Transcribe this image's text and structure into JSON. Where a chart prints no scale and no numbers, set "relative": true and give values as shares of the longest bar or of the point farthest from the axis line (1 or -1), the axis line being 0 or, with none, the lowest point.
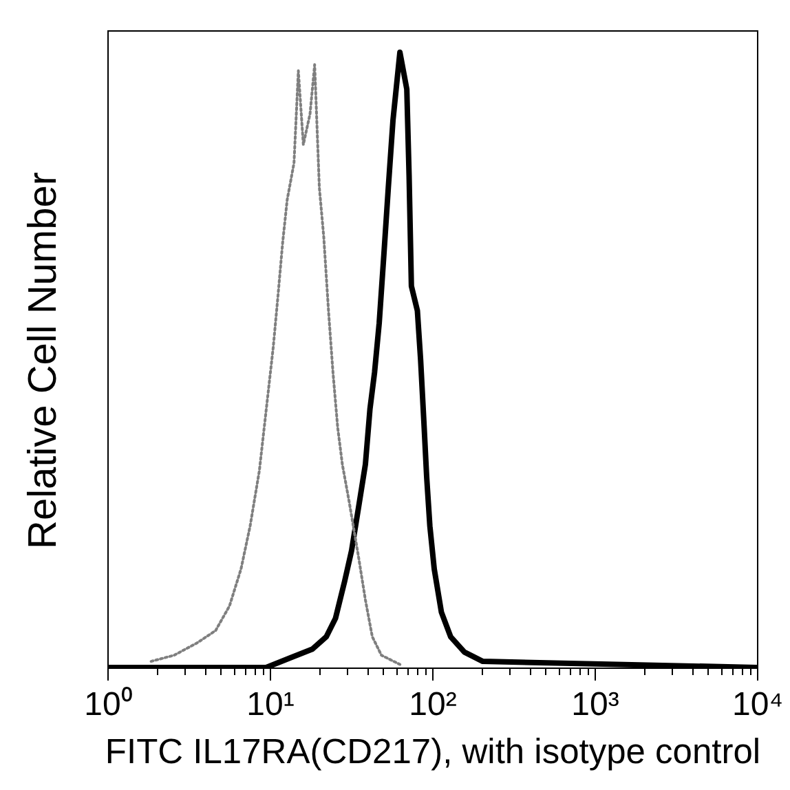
{
  "chart_data": {
    "type": "line",
    "xlabel": "FITC IL17RA(CD217), with isotype control",
    "ylabel": "Relative Cell Number",
    "relative": true,
    "log": "x",
    "xlim": [
      1,
      10000
    ],
    "xticks": [
      {
        "value": 1,
        "label": "10⁰"
      },
      {
        "value": 2,
        "label": null
      },
      {
        "value": 3,
        "label": null
      },
      {
        "value": 4,
        "label": null
      },
      {
        "value": 5,
        "label": null
      },
      {
        "value": 6,
        "label": null
      },
      {
        "value": 7,
        "label": null
      },
      {
        "value": 8,
        "label": null
      },
      {
        "value": 9,
        "label": null
      },
      {
        "value": 10,
        "label": "10¹"
      },
      {
        "value": 20,
        "label": null
      },
      {
        "value": 30,
        "label": null
      },
      {
        "value": 40,
        "label": null
      },
      {
        "value": 50,
        "label": null
      },
      {
        "value": 60,
        "label": null
      },
      {
        "value": 70,
        "label": null
      },
      {
        "value": 80,
        "label": null
      },
      {
        "value": 90,
        "label": null
      },
      {
        "value": 100,
        "label": "10²"
      },
      {
        "value": 200,
        "label": null
      },
      {
        "value": 300,
        "label": null
      },
      {
        "value": 400,
        "label": null
      },
      {
        "value": 500,
        "label": null
      },
      {
        "value": 600,
        "label": null
      },
      {
        "value": 700,
        "label": null
      },
      {
        "value": 800,
        "label": null
      },
      {
        "value": 900,
        "label": null
      },
      {
        "value": 1000,
        "label": "10³"
      },
      {
        "value": 2000,
        "label": null
      },
      {
        "value": 3000,
        "label": null
      },
      {
        "value": 4000,
        "label": null
      },
      {
        "value": 5000,
        "label": null
      },
      {
        "value": 6000,
        "label": null
      },
      {
        "value": 7000,
        "label": null
      },
      {
        "value": 8000,
        "label": null
      },
      {
        "value": 9000,
        "label": null
      },
      {
        "value": 10000,
        "label": "10⁴"
      }
    ],
    "series": [
      {
        "color": "#000000",
        "line_style": "solid",
        "x": [
          1,
          9.5,
          13.2,
          18.3,
          22.3,
          25.4,
          28.9,
          31.9,
          35.2,
          38.8,
          41.4,
          44.2,
          47.2,
          50.4,
          53.7,
          57.4,
          63.3,
          69.8,
          72.1,
          74.5,
          81.1,
          84.9,
          88.9,
          92.5,
          96.8,
          103,
          114,
          130,
          158,
          205,
          10000
        ],
        "values": [
          0,
          0,
          0.015,
          0.03,
          0.05,
          0.08,
          0.14,
          0.19,
          0.26,
          0.33,
          0.42,
          0.48,
          0.56,
          0.67,
          0.78,
          0.89,
          1,
          0.94,
          0.8,
          0.62,
          0.58,
          0.5,
          0.4,
          0.31,
          0.23,
          0.16,
          0.09,
          0.05,
          0.025,
          0.01,
          0
        ]
      },
      {
        "color": "#7f7f7f",
        "line_style": "dotted",
        "x": [
          1.86,
          2.58,
          3.57,
          4.64,
          5.65,
          6.65,
          7.57,
          8.63,
          9.52,
          10.5,
          11.2,
          12.0,
          12.8,
          14.1,
          15.0,
          16.1,
          17.7,
          18.9,
          20.2,
          21.5,
          23.0,
          24.5,
          26.2,
          28.0,
          30.8,
          35.2,
          38.8,
          42.8,
          48.7,
          63.3
        ],
        "values": [
          0.01,
          0.02,
          0.04,
          0.06,
          0.1,
          0.16,
          0.23,
          0.32,
          0.42,
          0.52,
          0.6,
          0.69,
          0.76,
          0.82,
          0.97,
          0.85,
          0.9,
          0.98,
          0.78,
          0.7,
          0.58,
          0.48,
          0.39,
          0.33,
          0.27,
          0.18,
          0.11,
          0.05,
          0.02,
          0.005
        ]
      }
    ]
  }
}
